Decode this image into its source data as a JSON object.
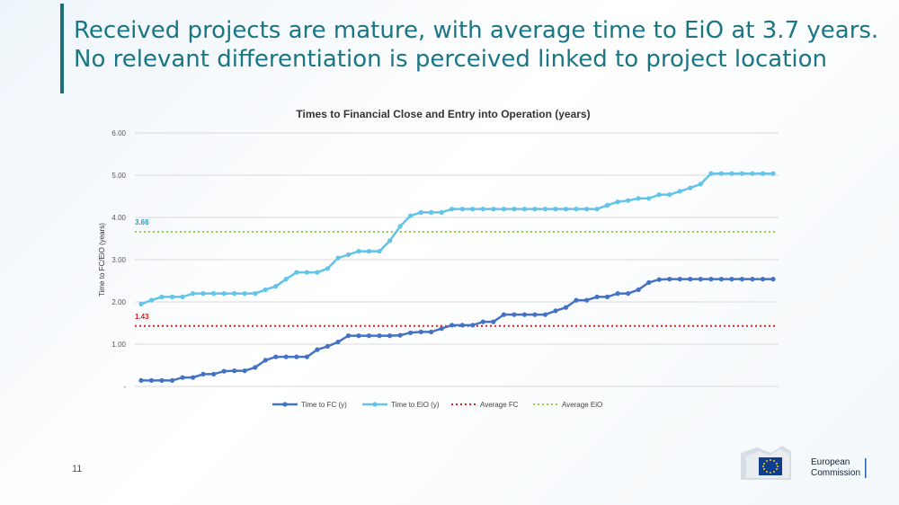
{
  "slide": {
    "title": "Received projects are mature, with average time to EiO at 3.7 years. No relevant differentiation is perceived linked to project location",
    "page_number": "11"
  },
  "logo": {
    "line1": "European",
    "line2": "Commission"
  },
  "chart_data": {
    "type": "line",
    "title": "Times to Financial Close and Entry into Operation (years)",
    "xlabel": "",
    "ylabel": "Time to FC/EiO (years)",
    "ylim": [
      0,
      6
    ],
    "yticks": [
      "-",
      "1.00",
      "2.00",
      "3.00",
      "4.00",
      "5.00",
      "6.00"
    ],
    "grid": true,
    "legend_position": "bottom",
    "series": [
      {
        "name": "Time to FC (y)",
        "color": "#4472c4",
        "style": "line-markers",
        "values": [
          0.14,
          0.14,
          0.14,
          0.14,
          0.21,
          0.21,
          0.29,
          0.29,
          0.36,
          0.37,
          0.37,
          0.45,
          0.62,
          0.7,
          0.7,
          0.7,
          0.7,
          0.87,
          0.95,
          1.05,
          1.2,
          1.2,
          1.2,
          1.2,
          1.2,
          1.21,
          1.27,
          1.29,
          1.29,
          1.37,
          1.45,
          1.45,
          1.45,
          1.53,
          1.53,
          1.7,
          1.7,
          1.7,
          1.7,
          1.7,
          1.79,
          1.87,
          2.04,
          2.04,
          2.12,
          2.12,
          2.2,
          2.2,
          2.29,
          2.46,
          2.53,
          2.54,
          2.54,
          2.54,
          2.54,
          2.54,
          2.54,
          2.54,
          2.54,
          2.54,
          2.54,
          2.54
        ]
      },
      {
        "name": "Time to EiO (y)",
        "color": "#62c4e8",
        "style": "line-markers",
        "values": [
          1.95,
          2.04,
          2.12,
          2.12,
          2.12,
          2.2,
          2.2,
          2.2,
          2.2,
          2.2,
          2.2,
          2.2,
          2.29,
          2.37,
          2.54,
          2.7,
          2.7,
          2.7,
          2.79,
          3.04,
          3.12,
          3.2,
          3.2,
          3.2,
          3.45,
          3.79,
          4.04,
          4.12,
          4.12,
          4.12,
          4.2,
          4.2,
          4.2,
          4.2,
          4.2,
          4.2,
          4.2,
          4.2,
          4.2,
          4.2,
          4.2,
          4.2,
          4.2,
          4.2,
          4.2,
          4.29,
          4.37,
          4.4,
          4.45,
          4.45,
          4.54,
          4.54,
          4.62,
          4.7,
          4.79,
          5.04,
          5.04,
          5.04,
          5.04,
          5.04,
          5.04,
          5.04
        ]
      },
      {
        "name": "Average FC",
        "color": "#e02020",
        "style": "dotted",
        "value": 1.43,
        "label": "1.43"
      },
      {
        "name": "Average EiO",
        "color": "#8fd14f",
        "style": "dotted",
        "value": 3.66,
        "label": "3.66"
      }
    ]
  }
}
